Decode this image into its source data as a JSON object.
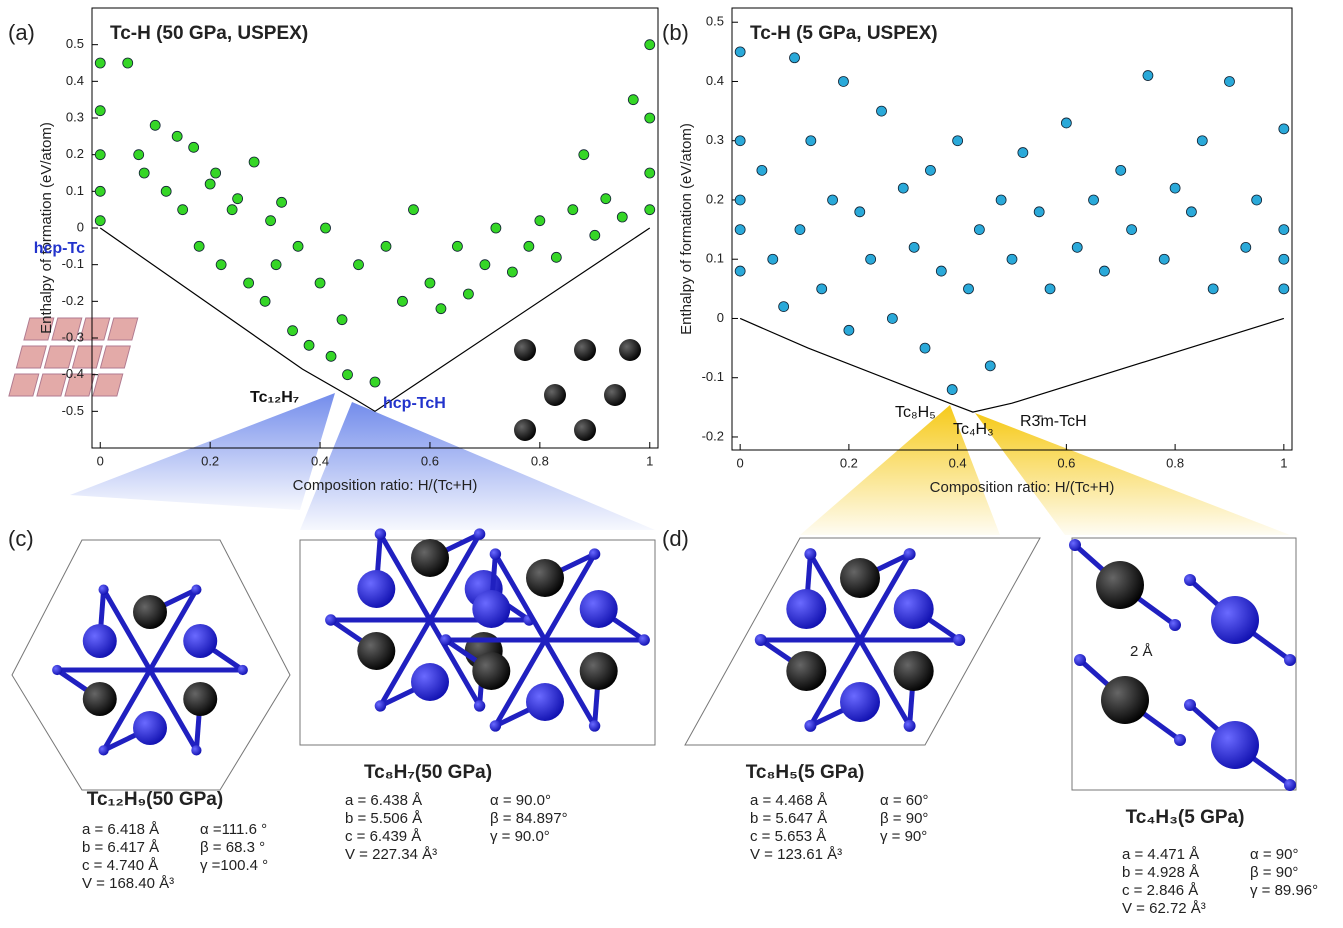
{
  "chart_data": [
    {
      "type": "scatter",
      "title": "Tc-H (50 GPa, USPEX)",
      "x_label": "Composition ratio: H/(Tc+H)",
      "y_label": "Enthalpy of formation (eV/atom)",
      "xlim": [
        -0.015,
        1.015
      ],
      "ylim": [
        -0.6,
        0.6
      ],
      "xticks": [
        0,
        0.2,
        0.4,
        0.6,
        0.8,
        1
      ],
      "yticks": [
        -0.5,
        -0.4,
        -0.3,
        -0.2,
        -0.1,
        0,
        0.1,
        0.2,
        0.3,
        0.4,
        0.5
      ],
      "points": {
        "color": "#35d626",
        "x": [
          0,
          0,
          0,
          0,
          0,
          0.05,
          0.07,
          0.08,
          0.1,
          0.12,
          0.14,
          0.15,
          0.17,
          0.18,
          0.2,
          0.21,
          0.22,
          0.24,
          0.25,
          0.27,
          0.28,
          0.3,
          0.31,
          0.32,
          0.33,
          0.35,
          0.36,
          0.38,
          0.4,
          0.41,
          0.42,
          0.44,
          0.45,
          0.47,
          0.5,
          0.52,
          0.55,
          0.57,
          0.6,
          0.62,
          0.65,
          0.67,
          0.7,
          0.72,
          0.75,
          0.78,
          0.8,
          0.83,
          0.86,
          0.88,
          0.9,
          0.92,
          0.95,
          0.97,
          1,
          1,
          1,
          1
        ],
        "y": [
          0.45,
          0.32,
          0.2,
          0.1,
          0.02,
          0.45,
          0.2,
          0.15,
          0.28,
          0.1,
          0.25,
          0.05,
          0.22,
          -0.05,
          0.12,
          0.15,
          -0.1,
          0.05,
          0.08,
          -0.15,
          0.18,
          -0.2,
          0.02,
          -0.1,
          0.07,
          -0.28,
          -0.05,
          -0.32,
          -0.15,
          0,
          -0.35,
          -0.25,
          -0.4,
          -0.1,
          -0.42,
          -0.05,
          -0.2,
          0.05,
          -0.15,
          -0.22,
          -0.05,
          -0.18,
          -0.1,
          0,
          -0.12,
          -0.05,
          0.02,
          -0.08,
          0.05,
          0.2,
          -0.02,
          0.08,
          0.03,
          0.35,
          0.5,
          0.3,
          0.15,
          0.05
        ]
      },
      "hull": {
        "color": "#000000",
        "x": [
          0,
          0.368,
          0.467,
          0.5,
          1
        ],
        "y": [
          0,
          -0.385,
          -0.47,
          -0.5,
          0
        ]
      },
      "annotations": [
        "hcp-Tc",
        "Tc₁₂H₇",
        "hcp-TcH"
      ]
    },
    {
      "type": "scatter",
      "title": "Tc-H (5 GPa, USPEX)",
      "x_label": "Composition ratio: H/(Tc+H)",
      "y_label": "Enthalpy of formation (eV/atom)",
      "xlim": [
        -0.015,
        1.015
      ],
      "ylim": [
        -0.222,
        0.524
      ],
      "xticks": [
        0,
        0.2,
        0.4,
        0.6,
        0.8,
        1
      ],
      "yticks": [
        -0.2,
        -0.1,
        0,
        0.1,
        0.2,
        0.3,
        0.4,
        0.5
      ],
      "points": {
        "color": "#2aa9d9",
        "x": [
          0,
          0,
          0,
          0,
          0,
          0.04,
          0.06,
          0.08,
          0.1,
          0.11,
          0.13,
          0.15,
          0.17,
          0.19,
          0.2,
          0.22,
          0.24,
          0.26,
          0.28,
          0.3,
          0.32,
          0.34,
          0.35,
          0.37,
          0.39,
          0.4,
          0.42,
          0.44,
          0.46,
          0.48,
          0.5,
          0.52,
          0.55,
          0.57,
          0.6,
          0.62,
          0.65,
          0.67,
          0.7,
          0.72,
          0.75,
          0.78,
          0.8,
          0.83,
          0.85,
          0.87,
          0.9,
          0.93,
          0.95,
          1,
          1,
          1,
          1
        ],
        "y": [
          0.45,
          0.3,
          0.15,
          0.08,
          0.2,
          0.25,
          0.1,
          0.02,
          0.44,
          0.15,
          0.3,
          0.05,
          0.2,
          0.4,
          -0.02,
          0.18,
          0.1,
          0.35,
          0,
          0.22,
          0.12,
          -0.05,
          0.25,
          0.08,
          -0.12,
          0.3,
          0.05,
          0.15,
          -0.08,
          0.2,
          0.1,
          0.28,
          0.18,
          0.05,
          0.33,
          0.12,
          0.2,
          0.08,
          0.25,
          0.15,
          0.41,
          0.1,
          0.22,
          0.18,
          0.3,
          0.05,
          0.4,
          0.12,
          0.2,
          0.15,
          0.32,
          0.1,
          0.05
        ]
      },
      "hull": {
        "color": "#000000",
        "x": [
          0,
          0.125,
          0.385,
          0.428,
          0.5,
          1
        ],
        "y": [
          0,
          -0.05,
          -0.143,
          -0.158,
          -0.143,
          0
        ]
      },
      "annotations": [
        "Tc₈H₅",
        "Tc₄H₃",
        "R3̄m-TcH"
      ]
    }
  ],
  "panel_labels": [
    "(a)",
    "(b)",
    "(c)",
    "(d)"
  ],
  "structures": [
    {
      "formula": "Tc₁₂H₉(50 GPa)",
      "left": [
        "a =  6.418 Å",
        "b =  6.417 Å",
        "c =  4.740 Å",
        "V = 168.40 Å³"
      ],
      "right": [
        "α =111.6 °",
        "β = 68.3 °",
        "γ =100.4 °"
      ]
    },
    {
      "formula": "Tc₈H₇(50 GPa)",
      "left": [
        "a =  6.438 Å",
        "b =  5.506 Å",
        "c =  6.439 Å",
        "V = 227.34 Å³"
      ],
      "right": [
        "α = 90.0°",
        "β = 84.897°",
        "γ = 90.0°"
      ]
    },
    {
      "formula": "Tc₈H₅(5 GPa)",
      "left": [
        "a =  4.468 Å",
        "b =  5.647 Å",
        "c =  5.653 Å",
        "V = 123.61 Å³"
      ],
      "right": [
        "α = 60°",
        "β = 90°",
        "γ = 90°"
      ]
    },
    {
      "formula": "Tc₄H₃(5 GPa)",
      "left": [
        "a =  4.471 Å",
        "b =  4.928 Å",
        "c =  2.846 Å",
        "V = 62.72 Å³"
      ],
      "right": [
        "α = 90°",
        "β = 90°",
        "γ = 89.96°"
      ]
    }
  ],
  "bond_label": "2 Å"
}
